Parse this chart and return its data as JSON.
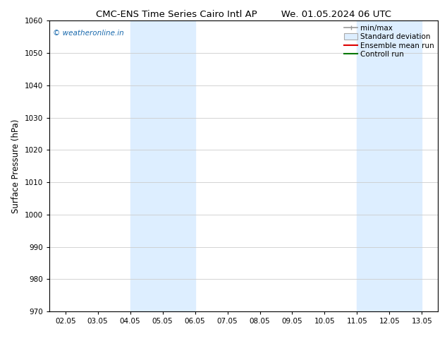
{
  "title_left": "CMC-ENS Time Series Cairo Intl AP",
  "title_right": "We. 01.05.2024 06 UTC",
  "ylabel": "Surface Pressure (hPa)",
  "ylim": [
    970,
    1060
  ],
  "yticks": [
    970,
    980,
    990,
    1000,
    1010,
    1020,
    1030,
    1040,
    1050,
    1060
  ],
  "x_tick_labels": [
    "02.05",
    "03.05",
    "04.05",
    "05.05",
    "06.05",
    "07.05",
    "08.05",
    "09.05",
    "10.05",
    "11.05",
    "12.05",
    "13.05"
  ],
  "x_tick_positions": [
    0,
    1,
    2,
    3,
    4,
    5,
    6,
    7,
    8,
    9,
    10,
    11
  ],
  "xlim": [
    -0.5,
    11.5
  ],
  "shaded_regions": [
    {
      "x_start": 2,
      "x_end": 4,
      "color": "#ddeeff"
    },
    {
      "x_start": 9,
      "x_end": 11,
      "color": "#ddeeff"
    }
  ],
  "watermark_text": "© weatheronline.in",
  "watermark_color": "#1a6aad",
  "legend_items": [
    {
      "label": "min/max",
      "color": "#999999",
      "lw": 1.2,
      "type": "minmax"
    },
    {
      "label": "Standard deviation",
      "color": "#ddeeff",
      "edge_color": "#aaaaaa",
      "lw": 1.0,
      "type": "stddev"
    },
    {
      "label": "Ensemble mean run",
      "color": "#dd0000",
      "lw": 1.5,
      "type": "line"
    },
    {
      "label": "Controll run",
      "color": "#007700",
      "lw": 1.5,
      "type": "line"
    }
  ],
  "background_color": "#ffffff",
  "grid_color": "#cccccc",
  "title_fontsize": 9.5,
  "tick_fontsize": 7.5,
  "ylabel_fontsize": 8.5,
  "legend_fontsize": 7.5,
  "watermark_fontsize": 7.5
}
